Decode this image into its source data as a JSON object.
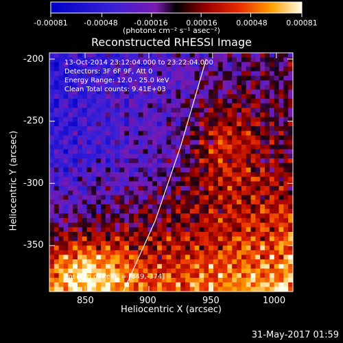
{
  "chart_data": {
    "type": "heatmap",
    "title": "Reconstructed RHESSI Image",
    "xlabel": "Heliocentric X (arcsec)",
    "ylabel": "Heliocentric Y (arcsec)",
    "xlim": [
      822,
      1013
    ],
    "ylim": [
      -387,
      -195
    ],
    "x_ticks": [
      850,
      900,
      950,
      1000
    ],
    "y_ticks": [
      -200,
      -250,
      -300,
      -350
    ],
    "x_tick_labels": [
      "850",
      "900",
      "950",
      "1000"
    ],
    "y_tick_labels": [
      "-200",
      "-250",
      "-300",
      "-350"
    ],
    "colorbar": {
      "range": [
        -0.00081,
        0.00081
      ],
      "ticks": [
        -0.00081,
        -0.00048,
        -0.00016,
        0.00016,
        0.00048,
        0.00081
      ],
      "tick_labels": [
        "-0.00081",
        "-0.00048",
        "-0.00016",
        "0.00016",
        "0.00048",
        "0.00081"
      ],
      "unit_label": "(photons cm⁻² s⁻¹ asec⁻²)"
    },
    "annotations": [
      "13-Oct-2014 23:12:04.000 to 23:22:04.000",
      "Detectors: 3F 6F 9F, Att 0",
      "Energy Range: 12.0 - 25.0 keV",
      "Clean     Total counts: 9.41E+03"
    ],
    "peak_label": "Position of Peak = [849,-374]",
    "peak_position": [
      849,
      -374
    ],
    "limb_curve": [
      [
        880,
        -387
      ],
      [
        905,
        -330
      ],
      [
        925,
        -270
      ],
      [
        945,
        -200
      ]
    ]
  },
  "timestamp": "31-May-2017 01:59",
  "colors": {
    "background": "#000000",
    "axis": "#ffffff"
  }
}
